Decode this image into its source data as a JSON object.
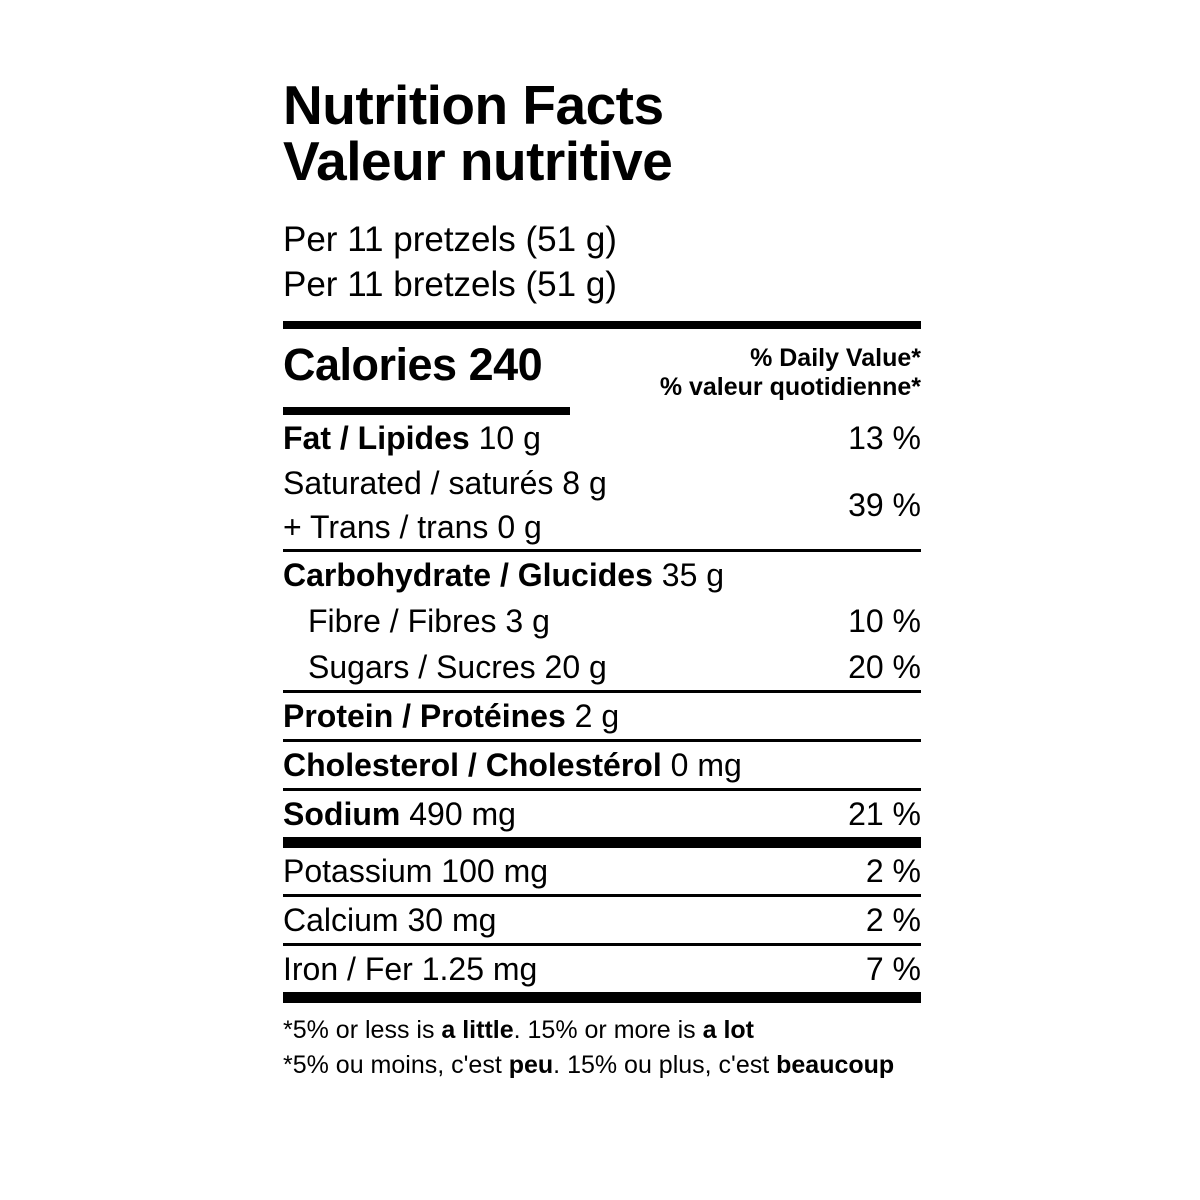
{
  "label": {
    "title_en": "Nutrition Facts",
    "title_fr": "Valeur nutritive",
    "serving_en": "Per 11 pretzels (51 g)",
    "serving_fr": "Per 11 bretzels (51 g)",
    "calories": "Calories 240",
    "dv_header_en": "% Daily Value*",
    "dv_header_fr": "% valeur quotidienne*",
    "rows": {
      "fat": {
        "name": "Fat / Lipides",
        "amount": "10 g",
        "dv": "13 %"
      },
      "saturated": {
        "name": "Saturated / saturés",
        "amount": "8 g"
      },
      "trans": {
        "name": "+ Trans / trans",
        "amount": "0 g"
      },
      "sat_trans_dv": "39 %",
      "carbohydrate": {
        "name": "Carbohydrate / Glucides",
        "amount": "35 g"
      },
      "fibre": {
        "name": "Fibre / Fibres",
        "amount": "3 g",
        "dv": "10 %"
      },
      "sugars": {
        "name": "Sugars / Sucres",
        "amount": "20 g",
        "dv": "20 %"
      },
      "protein": {
        "name": "Protein / Protéines",
        "amount": "2 g"
      },
      "cholesterol": {
        "name": "Cholesterol / Cholestérol",
        "amount": "0 mg"
      },
      "sodium": {
        "name": "Sodium",
        "amount": "490 mg",
        "dv": "21 %"
      },
      "potassium": {
        "name": "Potassium",
        "amount": "100 mg",
        "dv": "2 %"
      },
      "calcium": {
        "name": "Calcium",
        "amount": "30 mg",
        "dv": "2 %"
      },
      "iron": {
        "name": "Iron / Fer",
        "amount": "1.25 mg",
        "dv": "7 %"
      }
    },
    "footnote_en": {
      "p1": "*5% or less is ",
      "b1": "a little",
      "p2": ". 15% or more is ",
      "b2": "a lot"
    },
    "footnote_fr": {
      "p1": "*5% ou moins, c'est ",
      "b1": "peu",
      "p2": ". 15% ou plus, c'est ",
      "b2": "beaucoup"
    }
  },
  "colors": {
    "text": "#000000",
    "background": "#ffffff",
    "rule": "#000000"
  }
}
